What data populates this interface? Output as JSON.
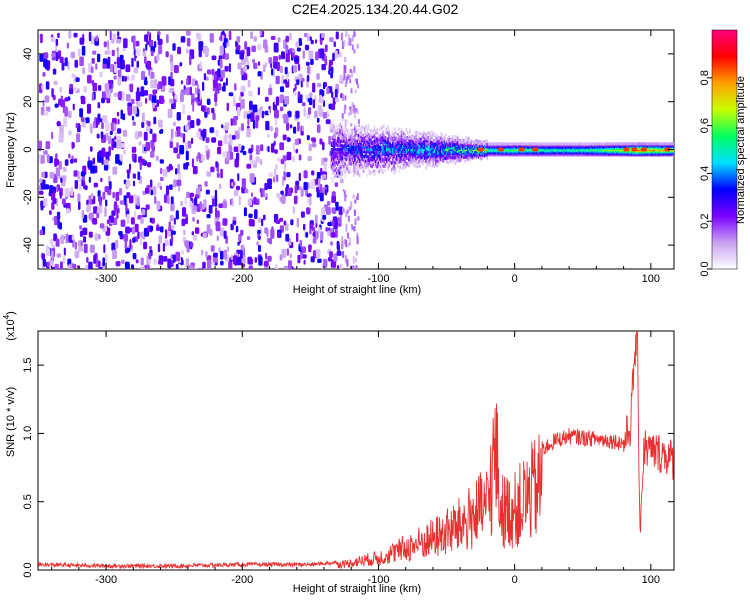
{
  "title": "C2E4.2025.134.20.44.G02",
  "chart_data": [
    {
      "type": "heatmap",
      "xlabel": "Height of straight line (km)",
      "ylabel": "Frequency (Hz)",
      "xlim": [
        -350,
        117
      ],
      "ylim": [
        -50,
        50
      ],
      "xticks": [
        -300,
        -200,
        -100,
        0,
        100
      ],
      "yticks": [
        -40,
        -20,
        0,
        20,
        40
      ],
      "colorbar": {
        "label": "Normalized spectral amplitude",
        "range": [
          0,
          1
        ],
        "ticks": [
          "0.0",
          "0.2",
          "0.4",
          "0.6",
          "0.8"
        ],
        "colors": [
          "#ffffff",
          "#c8a0f0",
          "#7a00ff",
          "#0000ff",
          "#00e0ff",
          "#00ff60",
          "#c8ff00",
          "#ffa000",
          "#ff0000",
          "#ff0080"
        ]
      },
      "noise_region_x": [
        -350,
        -128
      ],
      "signal_band": [
        {
          "x": -135,
          "half_width": 8,
          "level": 0.25
        },
        {
          "x": -120,
          "half_width": 6,
          "level": 0.3
        },
        {
          "x": -100,
          "half_width": 6,
          "level": 0.35
        },
        {
          "x": -80,
          "half_width": 5,
          "level": 0.35
        },
        {
          "x": -60,
          "half_width": 4,
          "level": 0.4
        },
        {
          "x": -40,
          "half_width": 3,
          "level": 0.45
        },
        {
          "x": -20,
          "half_width": 2,
          "level": 0.55
        },
        {
          "x": 0,
          "half_width": 2,
          "level": 0.6
        },
        {
          "x": 20,
          "half_width": 2,
          "level": 0.55
        },
        {
          "x": 50,
          "half_width": 2,
          "level": 0.55
        },
        {
          "x": 80,
          "half_width": 2,
          "level": 0.7
        },
        {
          "x": 90,
          "half_width": 2,
          "level": 0.85
        },
        {
          "x": 117,
          "half_width": 2,
          "level": 0.7
        }
      ]
    },
    {
      "type": "line",
      "xlabel": "Height of straight line (km)",
      "ylabel": "SNR (10 * v/v)",
      "y_multiplier": "(x10",
      "y_multiplier_exp": "4",
      "multiplier_close": ")",
      "xlim": [
        -350,
        117
      ],
      "ylim": [
        0,
        1.75
      ],
      "xticks": [
        -300,
        -200,
        -100,
        0,
        100
      ],
      "yticks": [
        "0.0",
        "0.5",
        "1.0",
        "1.5"
      ],
      "color": "#e83030",
      "series": [
        {
          "x": [
            -350,
            -300,
            -250,
            -200,
            -150,
            -125,
            -110,
            -100,
            -90,
            -80,
            -70,
            -60,
            -50,
            -40,
            -30,
            -20,
            -14,
            -10,
            0,
            10,
            20,
            30,
            40,
            50,
            60,
            70,
            80,
            85,
            88,
            90,
            92,
            95,
            100,
            110,
            117
          ],
          "y": [
            0.04,
            0.03,
            0.03,
            0.04,
            0.04,
            0.06,
            0.1,
            0.12,
            0.17,
            0.22,
            0.27,
            0.32,
            0.38,
            0.45,
            0.55,
            0.65,
            1.2,
            0.6,
            0.6,
            0.75,
            0.88,
            0.95,
            0.98,
            0.97,
            0.96,
            0.95,
            0.93,
            1.05,
            1.55,
            1.75,
            0.3,
            0.9,
            0.87,
            0.85,
            0.8
          ]
        }
      ]
    }
  ]
}
